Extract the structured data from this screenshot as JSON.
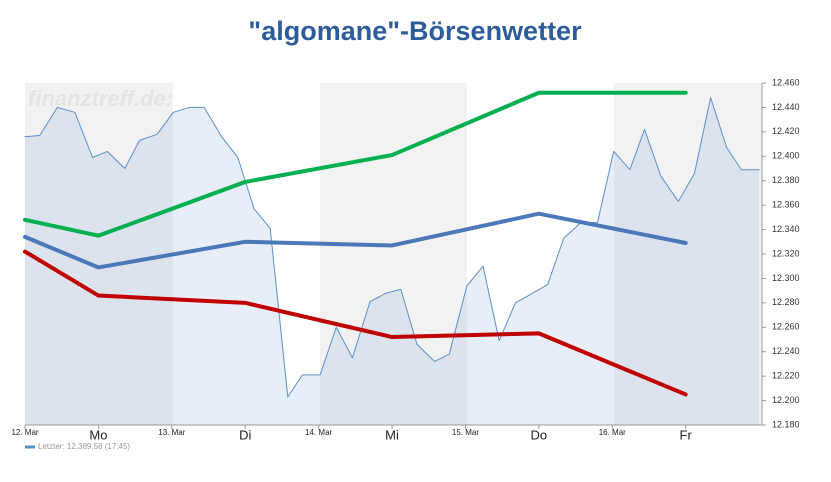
{
  "chart_data": {
    "type": "line",
    "title": "\"algomane\"-Börsenwetter",
    "watermark": "finanztreff.de:",
    "xlim": [
      0,
      5.02
    ],
    "xticks": [
      {
        "value": 0,
        "label": "12. Mar"
      },
      {
        "value": 0.5,
        "label": "Mo"
      },
      {
        "value": 1,
        "label": "13. Mar"
      },
      {
        "value": 1.5,
        "label": "Di"
      },
      {
        "value": 2,
        "label": "14. Mar"
      },
      {
        "value": 2.5,
        "label": "Mi"
      },
      {
        "value": 3,
        "label": "15. Mar"
      },
      {
        "value": 3.5,
        "label": "Do"
      },
      {
        "value": 4,
        "label": "16. Mar"
      },
      {
        "value": 4.5,
        "label": "Fr"
      }
    ],
    "ylim": [
      12.18,
      12.46
    ],
    "yticks": [
      {
        "value": 12.18,
        "label": "12.180"
      },
      {
        "value": 12.2,
        "label": "12.200"
      },
      {
        "value": 12.22,
        "label": "12.220"
      },
      {
        "value": 12.24,
        "label": "12.240"
      },
      {
        "value": 12.26,
        "label": "12.260"
      },
      {
        "value": 12.28,
        "label": "12.280"
      },
      {
        "value": 12.3,
        "label": "12.300"
      },
      {
        "value": 12.32,
        "label": "12.320"
      },
      {
        "value": 12.34,
        "label": "12.340"
      },
      {
        "value": 12.36,
        "label": "12.360"
      },
      {
        "value": 12.38,
        "label": "12.380"
      },
      {
        "value": 12.4,
        "label": "12.400"
      },
      {
        "value": 12.42,
        "label": "12.420"
      },
      {
        "value": 12.44,
        "label": "12.440"
      },
      {
        "value": 12.46,
        "label": "12.460"
      }
    ],
    "grid": false,
    "series": [
      {
        "name": "Letzter: 12.389,58 (17:45)",
        "color": "#5b8fcb",
        "area": true,
        "width": 1,
        "x": [
          0,
          0.1,
          0.22,
          0.34,
          0.46,
          0.56,
          0.68,
          0.78,
          0.9,
          1.01,
          1.12,
          1.22,
          1.34,
          1.45,
          1.56,
          1.67,
          1.79,
          1.89,
          2.01,
          2.12,
          2.23,
          2.35,
          2.46,
          2.56,
          2.67,
          2.79,
          2.89,
          3.01,
          3.12,
          3.23,
          3.34,
          3.46,
          3.56,
          3.67,
          3.78,
          3.9,
          4.01,
          4.12,
          4.22,
          4.33,
          4.45,
          4.56,
          4.67,
          4.78,
          4.88,
          5.0
        ],
        "values": [
          12.416,
          12.417,
          12.44,
          12.436,
          12.399,
          12.404,
          12.39,
          12.413,
          12.418,
          12.436,
          12.44,
          12.44,
          12.416,
          12.399,
          12.357,
          12.341,
          12.203,
          12.221,
          12.221,
          12.26,
          12.235,
          12.281,
          12.288,
          12.291,
          12.246,
          12.232,
          12.238,
          12.294,
          12.31,
          12.249,
          12.28,
          12.288,
          12.295,
          12.333,
          12.345,
          12.346,
          12.404,
          12.389,
          12.422,
          12.384,
          12.363,
          12.386,
          12.448,
          12.407,
          12.389,
          12.389
        ]
      },
      {
        "color": "#00b050",
        "width": 4,
        "x": [
          0,
          0.5,
          1.5,
          2.5,
          3.5,
          4.5
        ],
        "values": [
          12.348,
          12.335,
          12.379,
          12.401,
          12.452,
          12.452
        ]
      },
      {
        "color": "#4a78b8",
        "width": 4,
        "x": [
          0,
          0.5,
          1.5,
          2.5,
          3.5,
          4.5
        ],
        "values": [
          12.334,
          12.309,
          12.33,
          12.327,
          12.353,
          12.329
        ]
      },
      {
        "color": "#c00000",
        "width": 4,
        "x": [
          0,
          0.5,
          1.5,
          2.5,
          3.5,
          4.5
        ],
        "values": [
          12.322,
          12.286,
          12.28,
          12.252,
          12.255,
          12.205
        ]
      }
    ]
  }
}
